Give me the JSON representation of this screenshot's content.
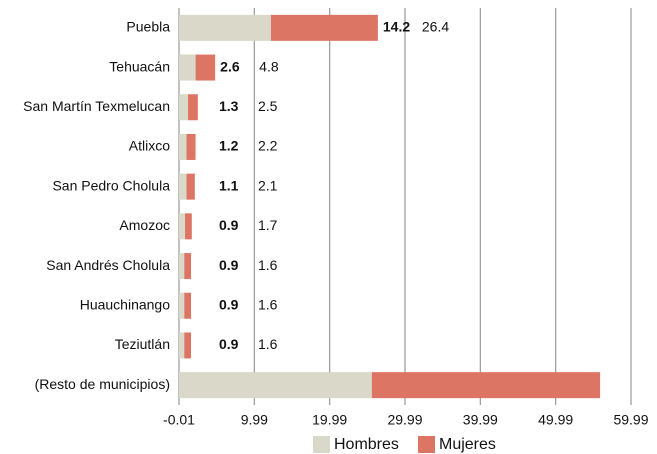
{
  "chart_data": {
    "type": "stacked_barh",
    "categories": [
      "Puebla",
      "Tehuacán",
      "San Martín Texmelucan",
      "Atlixco",
      "San Pedro Cholula",
      "Amozoc",
      "San Andrés Cholula",
      "Huauchinango",
      "Teziutlán",
      "(Resto de municipios)"
    ],
    "series": [
      {
        "name": "Hombres",
        "color": "#d9d8c9",
        "values": [
          12.2,
          2.2,
          1.2,
          1.0,
          1.0,
          0.8,
          0.7,
          0.7,
          0.7,
          25.6
        ]
      },
      {
        "name": "Mujeres",
        "color": "#dd7565",
        "values": [
          14.2,
          2.6,
          1.3,
          1.2,
          1.1,
          0.9,
          0.9,
          0.9,
          0.9,
          30.3
        ]
      }
    ],
    "totals": [
      26.4,
      4.8,
      2.5,
      2.2,
      2.1,
      1.7,
      1.6,
      1.6,
      1.6,
      null
    ],
    "xlim": [
      -0.01,
      59.99
    ],
    "xticks": [
      -0.01,
      9.99,
      19.99,
      29.99,
      39.99,
      49.99,
      59.99
    ],
    "grid": true,
    "legend": "bottom"
  }
}
